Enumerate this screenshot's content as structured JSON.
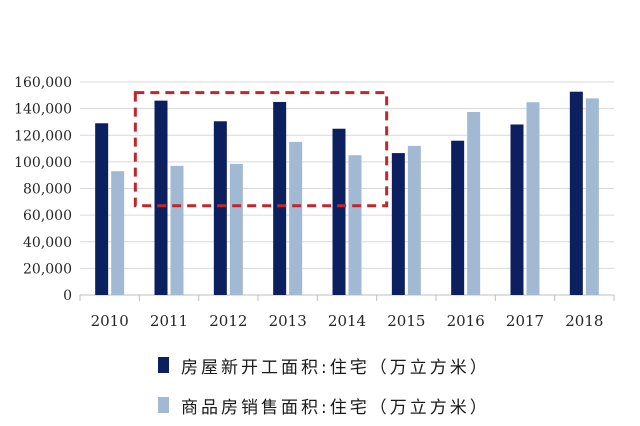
{
  "chart_data": {
    "type": "bar",
    "categories": [
      "2010",
      "2011",
      "2012",
      "2013",
      "2014",
      "2015",
      "2016",
      "2017",
      "2018"
    ],
    "series": [
      {
        "name": "房屋新开工面积:住宅（万立方米）",
        "color": "#0c1f5e",
        "values": [
          129000,
          146000,
          130500,
          145000,
          124900,
          106600,
          115900,
          128100,
          152700
        ]
      },
      {
        "name": "商品房销售面积:住宅（万立方米）",
        "color": "#a2b9d3",
        "values": [
          93000,
          97000,
          98500,
          115000,
          105000,
          112000,
          137500,
          144800,
          147700
        ]
      }
    ],
    "ylim": [
      0,
      160000
    ],
    "yticks": [
      "0",
      "20,000",
      "40,000",
      "60,000",
      "80,000",
      "100,000",
      "120,000",
      "140,000",
      "160,000"
    ],
    "ytick_values": [
      0,
      20000,
      40000,
      60000,
      80000,
      100000,
      120000,
      140000,
      160000
    ],
    "grid": true,
    "legend_position": "bottom",
    "annotation": {
      "shape": "dashed-rectangle",
      "color": "#c0272d",
      "x_span": [
        "2011",
        "2014"
      ],
      "y_span": [
        67000,
        152000
      ]
    }
  }
}
